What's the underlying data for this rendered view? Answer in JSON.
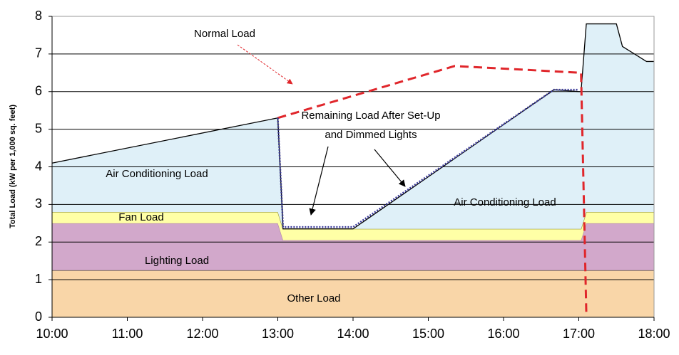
{
  "chart_data": {
    "type": "area",
    "ylabel": "Total Load (kW per 1,000 sq. feet)",
    "x": [
      10,
      13.0,
      13.07,
      14.0,
      16.67,
      17.0,
      17.03,
      17.1,
      17.5,
      17.58,
      17.9,
      18
    ],
    "xlim": [
      10,
      18
    ],
    "xticks": [
      {
        "value": 10,
        "label": "10:00"
      },
      {
        "value": 11,
        "label": "11:00"
      },
      {
        "value": 12,
        "label": "12:00"
      },
      {
        "value": 13,
        "label": "13:00"
      },
      {
        "value": 14,
        "label": "14:00"
      },
      {
        "value": 15,
        "label": "15:00"
      },
      {
        "value": 16,
        "label": "16:00"
      },
      {
        "value": 17,
        "label": "17:00"
      },
      {
        "value": 18,
        "label": "18:00"
      }
    ],
    "ylim": [
      0,
      8
    ],
    "yticks": [
      0,
      1,
      2,
      3,
      4,
      5,
      6,
      7,
      8
    ],
    "grid": true,
    "series": [
      {
        "name": "Other Load",
        "type": "area",
        "color": "#f9d6a8",
        "edge": "#333333",
        "values": [
          1.25,
          1.25,
          1.25,
          1.25,
          1.25,
          1.25,
          1.25,
          1.25,
          1.25,
          1.25,
          1.25,
          1.25
        ]
      },
      {
        "name": "Lighting Load",
        "type": "area",
        "color": "#d2a8cb",
        "edge": "#b38aa8",
        "values": [
          1.25,
          1.25,
          0.8,
          0.8,
          0.8,
          0.8,
          0.8,
          1.25,
          1.25,
          1.25,
          1.25,
          1.25
        ]
      },
      {
        "name": "Fan Load",
        "type": "area",
        "color": "#ffffa6",
        "edge": "#9a9a40",
        "values": [
          0.3,
          0.3,
          0.3,
          0.3,
          0.3,
          0.3,
          0.3,
          0.3,
          0.3,
          0.3,
          0.3,
          0.3
        ]
      },
      {
        "name": "Air Conditioning Load",
        "type": "area",
        "color": "#dff0f8",
        "edge": "#000000",
        "values": [
          1.3,
          2.5,
          0,
          0,
          3.7,
          3.65,
          3.65,
          5.0,
          5.0,
          4.4,
          4.0,
          4.0
        ]
      },
      {
        "name": "Normal Load",
        "type": "line",
        "style": "dashed",
        "color": "#e0262b",
        "x": [
          13.0,
          15.35,
          17.03,
          17.1
        ],
        "values": [
          5.3,
          6.68,
          6.5,
          0.1
        ]
      },
      {
        "type": "line",
        "style": "dotted",
        "color": "#3a3a9a",
        "x": [
          13.0,
          13.07,
          14.0,
          16.67,
          17.0
        ],
        "values": [
          5.3,
          2.4,
          2.4,
          6.05,
          6.05
        ]
      }
    ],
    "annotations": [
      "Remaining Load After Set-Up",
      "and Dimmed Lights"
    ]
  }
}
